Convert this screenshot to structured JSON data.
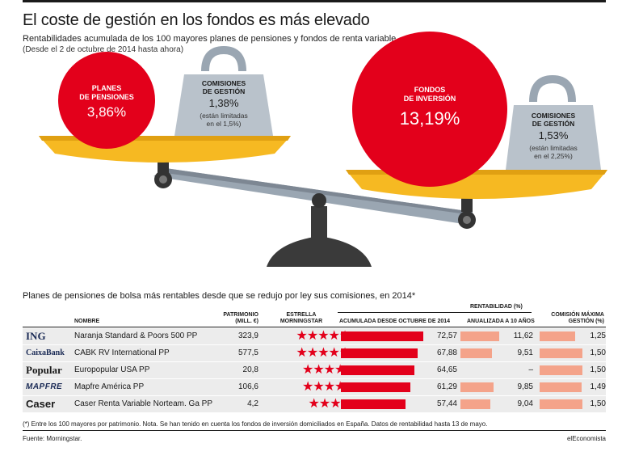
{
  "header": {
    "title": "El coste de gestión en los fondos es más elevado",
    "subtitle": "Rentabilidades acumulada de los 100 mayores planes de pensiones y fondos de renta variable",
    "subtitle2": "(Desde el 2 de octubre de 2014 hasta ahora)"
  },
  "scale": {
    "left_circle": {
      "label_line1": "PLANES",
      "label_line2": "DE PENSIONES",
      "value": "3,86%"
    },
    "left_weight": {
      "label_line1": "COMISIONES",
      "label_line2": "DE GESTIÓN",
      "value": "1,38%",
      "note_line1": "(están limitadas",
      "note_line2": "en el 1,5%)"
    },
    "right_circle": {
      "label_line1": "FONDOS",
      "label_line2": "DE INVERSIÓN",
      "value": "13,19%"
    },
    "right_weight": {
      "label_line1": "COMISIONES",
      "label_line2": "DE GESTIÓN",
      "value": "1,53%",
      "note_line1": "(están limitadas",
      "note_line2": "en el 2,25%)"
    },
    "colors": {
      "red": "#e3001b",
      "gold": "#f6b922",
      "gray": "#9aa6b2",
      "dark": "#333333"
    }
  },
  "table": {
    "title": "Planes de pensiones de bolsa más rentables desde que se redujo por ley sus comisiones, en 2014*",
    "headers": {
      "nombre": "NOMBRE",
      "patrimonio_l1": "PATRIMONIO",
      "patrimonio_l2": "(MILL. €)",
      "estrella_l1": "ESTRELLA",
      "estrella_l2": "MORNINGSTAR",
      "rentabilidad_group": "RENTABILIDAD (%)",
      "acumulada": "ACUMULADA DESDE OCTUBRE DE 2014",
      "anualizada": "ANUALIZADA A 10 AÑOS",
      "comision_l1": "COMISIÓN MÁXIMA",
      "comision_l2": "GESTIÓN (%)"
    },
    "rows": [
      {
        "logo": "ING",
        "nombre": "Naranja Standard & Poors 500 PP",
        "patrimonio": "323,9",
        "estrellas": 5,
        "acumulada": "72,57",
        "anualizada": "11,62",
        "comision": "1,25"
      },
      {
        "logo": "CaixaBank",
        "nombre": "CABK RV International PP",
        "patrimonio": "577,5",
        "estrellas": 5,
        "acumulada": "67,88",
        "anualizada": "9,51",
        "comision": "1,50"
      },
      {
        "logo": "Popular",
        "nombre": "Europopular USA PP",
        "patrimonio": "20,8",
        "estrellas": 4,
        "acumulada": "64,65",
        "anualizada": "–",
        "comision": "1,50"
      },
      {
        "logo": "MAPFRE",
        "nombre": "Mapfre América PP",
        "patrimonio": "106,6",
        "estrellas": 4,
        "acumulada": "61,29",
        "anualizada": "9,85",
        "comision": "1,49"
      },
      {
        "logo": "Caser",
        "nombre": "Caser Renta Variable Norteam. Ga PP",
        "patrimonio": "4,2",
        "estrellas": 3,
        "acumulada": "57,44",
        "anualizada": "9,04",
        "comision": "1,50"
      }
    ],
    "bar_colors": {
      "acumulada": "#e3001b",
      "anualizada": "#f4a38a",
      "comision": "#f4a38a"
    }
  },
  "chart_data": {
    "type": "table",
    "title": "Planes de pensiones de bolsa más rentables desde que se redujo por ley sus comisiones, en 2014*",
    "columns": [
      "NOMBRE",
      "PATRIMONIO (MILL. €)",
      "ESTRELLA MORNINGSTAR",
      "ACUMULADA DESDE OCTUBRE DE 2014",
      "ANUALIZADA A 10 AÑOS",
      "COMISIÓN MÁXIMA GESTIÓN (%)"
    ],
    "categories": [
      "Naranja Standard & Poors 500 PP",
      "CABK RV International PP",
      "Europopular USA PP",
      "Mapfre América PP",
      "Caser Renta Variable Norteam. Ga PP"
    ],
    "series": [
      {
        "name": "PATRIMONIO (MILL. €)",
        "values": [
          323.9,
          577.5,
          20.8,
          106.6,
          4.2
        ]
      },
      {
        "name": "ESTRELLA MORNINGSTAR",
        "values": [
          5,
          5,
          4,
          4,
          3
        ]
      },
      {
        "name": "ACUMULADA DESDE OCTUBRE DE 2014",
        "values": [
          72.57,
          67.88,
          64.65,
          61.29,
          57.44
        ]
      },
      {
        "name": "ANUALIZADA A 10 AÑOS",
        "values": [
          11.62,
          9.51,
          null,
          9.85,
          9.04
        ]
      },
      {
        "name": "COMISIÓN MÁXIMA GESTIÓN (%)",
        "values": [
          1.25,
          1.5,
          1.5,
          1.49,
          1.5
        ]
      }
    ],
    "balance": {
      "planes_de_pensiones": 3.86,
      "comisiones_planes": 1.38,
      "fondos_de_inversion": 13.19,
      "comisiones_fondos": 1.53
    }
  },
  "footer": {
    "footnote": "(*) Entre los 100 mayores por patrimonio. Nota. Se han tenido en cuenta los fondos de inversión domiciliados en España. Datos de rentabilidad hasta 13 de mayo.",
    "source": "Fuente: Morningstar.",
    "brand": "elEconomista"
  }
}
